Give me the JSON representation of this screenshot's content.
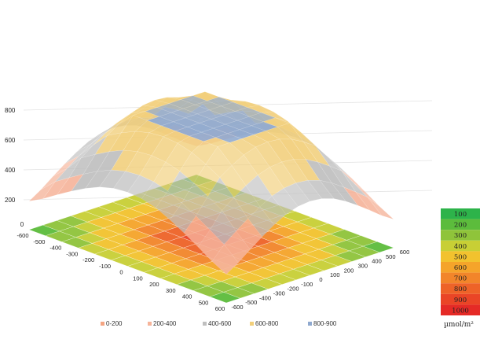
{
  "chart_data": {
    "type": "surface-3d",
    "title": "",
    "z_axis": {
      "ticks": [
        200,
        400,
        600,
        800
      ],
      "range": [
        0,
        800
      ],
      "zero_label": "0"
    },
    "x_axis": {
      "ticks": [
        -600,
        -500,
        -400,
        -300,
        -200,
        -100,
        0,
        100,
        200,
        300,
        400,
        500,
        600
      ]
    },
    "y_axis": {
      "ticks": [
        -600,
        -500,
        -400,
        -300,
        -200,
        -100,
        0,
        100,
        200,
        300,
        400,
        500,
        600
      ]
    },
    "x_tick_labels": [
      "-600",
      "-500",
      "-400",
      "-300",
      "-200",
      "-100",
      "0",
      "100",
      "200",
      "300",
      "400",
      "500",
      "600"
    ],
    "y_tick_labels": [
      "-600",
      "-500",
      "-400",
      "-300",
      "-200",
      "-100",
      "0",
      "100",
      "200",
      "300",
      "400",
      "500",
      "600"
    ],
    "surface_profile": {
      "description_units": "µmol/m²",
      "x": [
        -600,
        -500,
        -400,
        -300,
        -200,
        -100,
        0,
        100,
        200,
        300,
        400,
        500,
        600
      ],
      "z_profile": [
        180,
        300,
        450,
        580,
        700,
        770,
        790,
        770,
        700,
        580,
        450,
        300,
        180
      ]
    },
    "legend": {
      "placement": "bottom",
      "items": [
        {
          "label": "0-200",
          "color": "#f4a582"
        },
        {
          "label": "200-400",
          "color": "#f6b49a"
        },
        {
          "label": "400-600",
          "color": "#bfbfbf"
        },
        {
          "label": "600-800",
          "color": "#f2cf7a"
        },
        {
          "label": "800-900",
          "color": "#8fa9cf"
        }
      ]
    },
    "color_scale": {
      "unit": "µmol/m²",
      "steps": [
        {
          "value": "100",
          "color": "#2db34a"
        },
        {
          "value": "200",
          "color": "#5cbc3c"
        },
        {
          "value": "300",
          "color": "#8fc43a"
        },
        {
          "value": "400",
          "color": "#c8cf35"
        },
        {
          "value": "500",
          "color": "#f2c22e"
        },
        {
          "value": "600",
          "color": "#f5a42a"
        },
        {
          "value": "700",
          "color": "#f2852a"
        },
        {
          "value": "800",
          "color": "#ee6328"
        },
        {
          "value": "900",
          "color": "#ea4526"
        },
        {
          "value": "1000",
          "color": "#e52a26"
        }
      ]
    }
  }
}
